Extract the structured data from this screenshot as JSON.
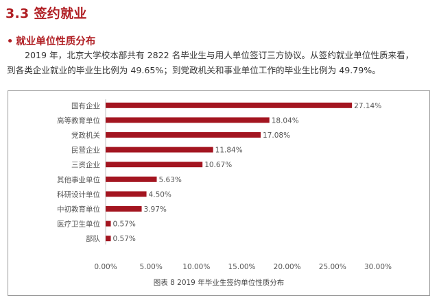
{
  "section": {
    "title": "3.3 签约就业",
    "subtitle": "就业单位性质分布",
    "bullet": "•",
    "paragraph_line1": "2019 年，北京大学校本部共有 2822 名毕业生与用人单位签订三方协议。从签约就业单位性质来看，",
    "paragraph_line2": "到各类企业就业的毕业生比例为 49.65%；到党政机关和事业单位工作的毕业生比例为 49.79%。"
  },
  "colors": {
    "accent": "#b01e23",
    "bar": "#a31520"
  },
  "chart_data": {
    "type": "bar",
    "orientation": "horizontal",
    "title": "图表 8  2019 年毕业生签约单位性质分布",
    "categories": [
      "国有企业",
      "高等教育单位",
      "党政机关",
      "民营企业",
      "三资企业",
      "其他事业单位",
      "科研设计单位",
      "中初教育单位",
      "医疗卫生单位",
      "部队"
    ],
    "values": [
      27.14,
      18.04,
      17.08,
      11.84,
      10.67,
      5.63,
      4.5,
      3.97,
      0.57,
      0.57
    ],
    "value_labels": [
      "27.14%",
      "18.04%",
      "17.08%",
      "11.84%",
      "10.67%",
      "5.63%",
      "4.50%",
      "3.97%",
      "0.57%",
      "0.57%"
    ],
    "xlim": [
      0,
      30
    ],
    "xticks": [
      0,
      5,
      10,
      15,
      20,
      25,
      30
    ],
    "xtick_labels": [
      "0.00%",
      "5.00%",
      "10.00%",
      "15.00%",
      "20.00%",
      "25.00%",
      "30.00%"
    ],
    "grid": false,
    "legend": "none"
  }
}
